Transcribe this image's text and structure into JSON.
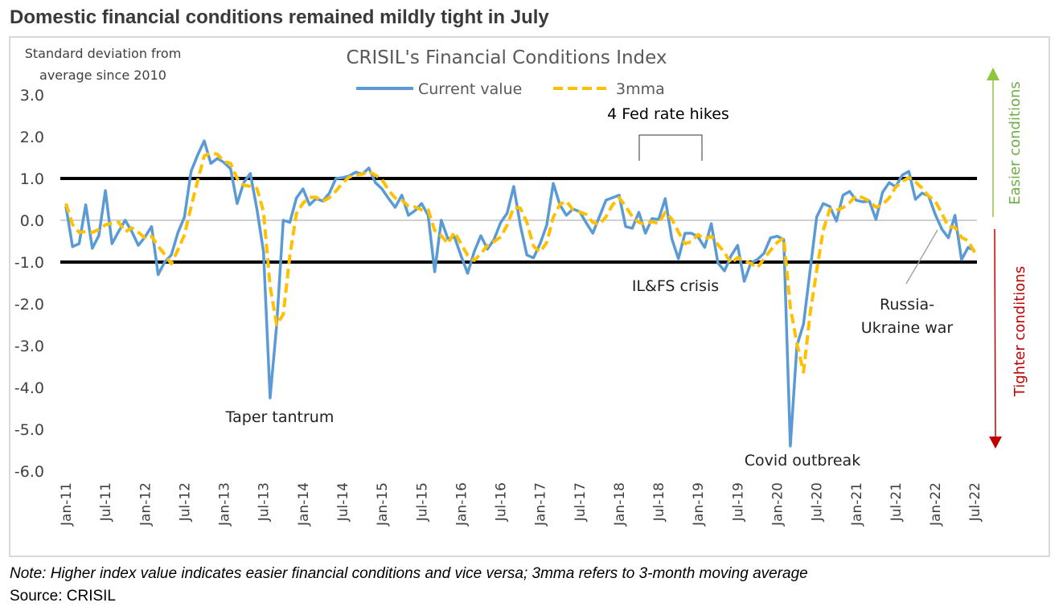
{
  "header": {
    "title": "Domestic financial conditions remained mildly tight in July"
  },
  "footer": {
    "note": "Note: Higher index value indicates easier financial conditions and vice versa; 3mma refers to 3-month moving average",
    "source": "Source: CRISIL"
  },
  "colors": {
    "current": "#5b9bd5",
    "mma": "#ffc000",
    "easier": "#70ad47",
    "tighter": "#c00000",
    "threshold": "#000000",
    "zero": "#d0d0d0"
  },
  "chart_data": {
    "type": "line",
    "title": "CRISIL's Financial Conditions Index",
    "ylabel_lines": [
      "Standard deviation from",
      "average since 2010"
    ],
    "ylim": [
      -6.0,
      3.0
    ],
    "yticks": [
      "3.0",
      "2.0",
      "1.0",
      "0.0",
      "-1.0",
      "-2.0",
      "-3.0",
      "-4.0",
      "-5.0",
      "-6.0"
    ],
    "x_start": "Jan-11",
    "x_end": "Jul-22",
    "x_frequency": "monthly",
    "xtick_labels": [
      "Jan-11",
      "Jul-11",
      "Jan-12",
      "Jul-12",
      "Jan-13",
      "Jul-13",
      "Jan-14",
      "Jul-14",
      "Jan-15",
      "Jul-15",
      "Jan-16",
      "Jul-16",
      "Jan-17",
      "Jul-17",
      "Jan-18",
      "Jul-18",
      "Jan-19",
      "Jul-19",
      "Jan-20",
      "Jul-20",
      "Jan-21",
      "Jul-21",
      "Jan-22",
      "Jul-22"
    ],
    "reference_lines": [
      1.0,
      -1.0
    ],
    "grid": false,
    "legend_position": "top",
    "series": [
      {
        "name": "Current value",
        "style": "solid",
        "values": [
          0.33,
          -0.63,
          -0.56,
          0.37,
          -0.67,
          -0.37,
          0.71,
          -0.56,
          -0.27,
          0.0,
          -0.27,
          -0.6,
          -0.4,
          -0.15,
          -1.3,
          -1.0,
          -0.83,
          -0.3,
          0.08,
          1.17,
          1.56,
          1.9,
          1.36,
          1.48,
          1.38,
          1.23,
          0.4,
          0.9,
          1.12,
          0.27,
          -0.75,
          -4.25,
          -2.5,
          0.0,
          -0.05,
          0.53,
          0.75,
          0.37,
          0.52,
          0.46,
          0.65,
          1.0,
          1.02,
          1.06,
          1.15,
          1.1,
          1.25,
          0.9,
          0.75,
          0.52,
          0.31,
          0.6,
          0.12,
          0.23,
          0.4,
          0.12,
          -1.23,
          0.0,
          -0.44,
          -0.4,
          -0.85,
          -1.27,
          -0.75,
          -0.37,
          -0.69,
          -0.46,
          -0.06,
          0.17,
          0.81,
          -0.12,
          -0.83,
          -0.9,
          -0.56,
          -0.12,
          0.88,
          0.37,
          0.12,
          0.27,
          0.21,
          -0.06,
          -0.31,
          0.08,
          0.48,
          0.54,
          0.6,
          -0.15,
          -0.19,
          0.19,
          -0.31,
          0.04,
          0.02,
          0.52,
          -0.44,
          -0.92,
          -0.31,
          -0.31,
          -0.4,
          -0.65,
          -0.08,
          -1.02,
          -1.21,
          -0.85,
          -0.6,
          -1.46,
          -1.02,
          -0.94,
          -0.79,
          -0.42,
          -0.38,
          -0.46,
          -5.4,
          -3.0,
          -2.48,
          -1.2,
          0.08,
          0.4,
          0.33,
          -0.02,
          0.6,
          0.69,
          0.48,
          0.44,
          0.46,
          0.02,
          0.67,
          0.9,
          0.8,
          1.08,
          1.17,
          0.5,
          0.65,
          0.58,
          0.14,
          -0.21,
          -0.42,
          0.12,
          -0.94,
          -0.65,
          -0.72
        ]
      },
      {
        "name": "3mma",
        "style": "dashed",
        "values": [
          0.4,
          -0.1,
          -0.29,
          -0.27,
          -0.29,
          -0.22,
          -0.11,
          -0.07,
          -0.04,
          -0.28,
          -0.18,
          -0.29,
          -0.42,
          -0.38,
          -0.62,
          -0.82,
          -1.04,
          -0.71,
          -0.35,
          0.32,
          0.94,
          1.54,
          1.61,
          1.58,
          1.41,
          1.36,
          1.0,
          0.84,
          0.81,
          0.76,
          0.21,
          -1.58,
          -2.5,
          -2.25,
          -0.85,
          0.16,
          0.41,
          0.55,
          0.55,
          0.45,
          0.54,
          0.7,
          0.89,
          1.03,
          1.08,
          1.1,
          1.17,
          1.08,
          0.97,
          0.72,
          0.53,
          0.48,
          0.34,
          0.32,
          0.25,
          0.25,
          -0.24,
          -0.37,
          -0.56,
          -0.28,
          -0.56,
          -0.84,
          -0.96,
          -0.8,
          -0.6,
          -0.51,
          -0.4,
          -0.12,
          0.31,
          0.29,
          -0.05,
          -0.62,
          -0.76,
          -0.53,
          0.07,
          0.38,
          0.46,
          0.25,
          0.2,
          0.14,
          -0.05,
          -0.1,
          0.08,
          0.37,
          0.54,
          0.33,
          0.09,
          -0.05,
          -0.1,
          -0.03,
          -0.08,
          0.19,
          0.03,
          -0.28,
          -0.56,
          -0.51,
          -0.34,
          -0.45,
          -0.38,
          -0.58,
          -0.77,
          -1.03,
          -0.89,
          -0.97,
          -1.03,
          -1.14,
          -0.92,
          -0.72,
          -0.53,
          -0.42,
          -2.08,
          -2.95,
          -3.63,
          -2.23,
          -1.2,
          -0.24,
          0.27,
          0.24,
          0.3,
          0.42,
          0.59,
          0.54,
          0.46,
          0.31,
          0.38,
          0.53,
          0.79,
          0.93,
          1.02,
          0.92,
          0.77,
          0.58,
          0.46,
          0.17,
          -0.16,
          -0.17,
          -0.41,
          -0.49,
          -0.77
        ]
      }
    ],
    "annotations": {
      "taper": "Taper tantrum",
      "covid": "Covid outbreak",
      "ilfs": "IL&FS crisis",
      "russia_1": "Russia-",
      "russia_2": "Ukraine war",
      "fed": "4 Fed rate hikes",
      "easier": "Easier conditions",
      "tighter": "Tighter conditions"
    }
  }
}
